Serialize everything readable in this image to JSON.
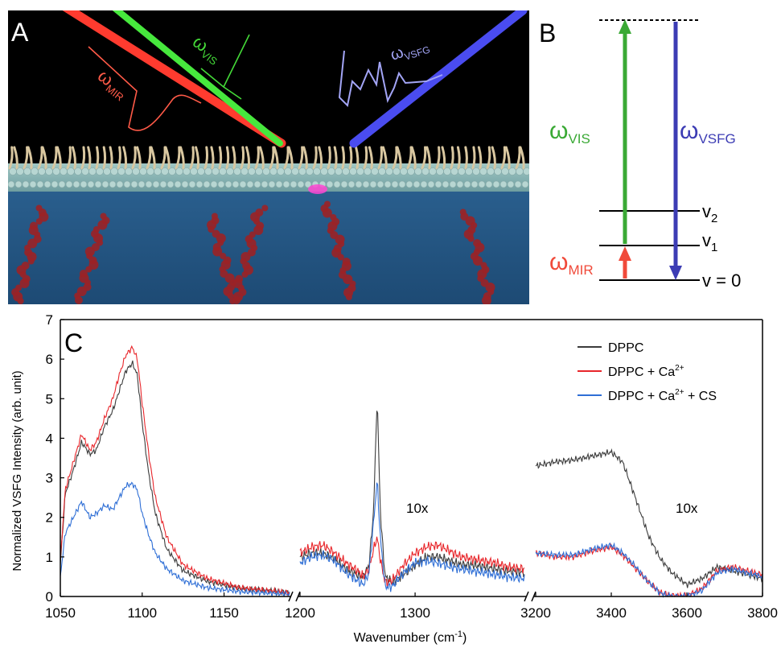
{
  "panel_a": {
    "letter": "A",
    "omega_mir": {
      "sym": "ω",
      "sub": "MIR",
      "color": "#e8604c"
    },
    "omega_vis": {
      "sym": "ω",
      "sub": "VIS",
      "color": "#3fd23a"
    },
    "omega_vsfg": {
      "sym": "ω",
      "sub": "VSFG",
      "color": "#8d8ff0"
    }
  },
  "panel_b": {
    "letter": "B",
    "omega_vis": {
      "sym": "ω",
      "sub": "VIS",
      "color": "#3aa935"
    },
    "omega_vsfg": {
      "sym": "ω",
      "sub": "VSFG",
      "color": "#3c3cb4"
    },
    "omega_mir": {
      "sym": "ω",
      "sub": "MIR",
      "color": "#f04a3a"
    },
    "levels": [
      {
        "v": "v",
        "sub": "2"
      },
      {
        "v": "v",
        "sub": "1"
      },
      {
        "v": "v = 0",
        "sub": ""
      }
    ]
  },
  "chart_data": {
    "type": "line",
    "panel_letter": "C",
    "ylabel": "Normalized VSFG Intensity (arb. unit)",
    "xlabel_main": "Wavenumber (cm",
    "xlabel_sup": "-1",
    "xlabel_end": ")",
    "ylim": [
      0,
      7
    ],
    "yticks": [
      "0",
      "1",
      "2",
      "3",
      "4",
      "5",
      "6",
      "7"
    ],
    "segments": [
      {
        "xlim": [
          1050,
          1190
        ],
        "ticks": [
          1050,
          1100,
          1150
        ],
        "tick_labels": [
          "1050",
          "1100",
          "1150"
        ],
        "annotation": ""
      },
      {
        "xlim": [
          1200,
          1395
        ],
        "ticks": [
          1200,
          1300
        ],
        "tick_labels": [
          "1200",
          "1300"
        ],
        "annotation": "10x"
      },
      {
        "xlim": [
          3200,
          3800
        ],
        "ticks": [
          3200,
          3400,
          3600,
          3800
        ],
        "tick_labels": [
          "3200",
          "3400",
          "3600",
          "3800"
        ],
        "annotation": "10x"
      }
    ],
    "legend": {
      "placement": "top-right",
      "items": [
        {
          "text": "DPPC",
          "sup": "",
          "tail": "",
          "color": "#3c3c3c"
        },
        {
          "text": "DPPC + Ca",
          "sup": "2+",
          "tail": "",
          "color": "#e8262b"
        },
        {
          "text": "DPPC + Ca",
          "sup": "2+",
          "tail": " + CS",
          "color": "#2f6fd6"
        }
      ]
    },
    "series": [
      {
        "name": "DPPC",
        "color": "#3c3c3c",
        "seg1": {
          "x": [
            1050,
            1053,
            1058,
            1063,
            1068,
            1072,
            1077,
            1082,
            1086,
            1090,
            1094,
            1097,
            1100,
            1104,
            1108,
            1115,
            1125,
            1140,
            1160,
            1190
          ],
          "y": [
            0.8,
            2.6,
            3.2,
            3.9,
            3.6,
            3.7,
            4.3,
            4.7,
            5.2,
            5.7,
            5.9,
            5.6,
            4.4,
            3.1,
            2.1,
            1.2,
            0.65,
            0.38,
            0.2,
            0.1
          ]
        },
        "seg2": {
          "x": [
            1200,
            1210,
            1220,
            1230,
            1240,
            1250,
            1255,
            1260,
            1264,
            1267,
            1270,
            1274,
            1280,
            1290,
            1300,
            1310,
            1320,
            1330,
            1340,
            1350,
            1360,
            1370,
            1380,
            1395
          ],
          "y": [
            1.0,
            1.1,
            1.1,
            0.95,
            0.7,
            0.55,
            0.5,
            0.8,
            2.2,
            5.05,
            2.0,
            0.5,
            0.35,
            0.55,
            0.8,
            1.0,
            1.0,
            0.9,
            0.8,
            0.8,
            0.75,
            0.7,
            0.65,
            0.6
          ]
        },
        "seg3": {
          "x": [
            3200,
            3250,
            3300,
            3350,
            3400,
            3430,
            3460,
            3500,
            3530,
            3560,
            3600,
            3640,
            3680,
            3720,
            3760,
            3800
          ],
          "y": [
            3.3,
            3.4,
            3.45,
            3.55,
            3.65,
            3.4,
            2.6,
            1.5,
            0.95,
            0.6,
            0.3,
            0.45,
            0.75,
            0.65,
            0.55,
            0.45
          ]
        }
      },
      {
        "name": "DPPC + Ca2+",
        "color": "#e8262b",
        "seg1": {
          "x": [
            1050,
            1053,
            1058,
            1063,
            1068,
            1072,
            1077,
            1082,
            1086,
            1090,
            1094,
            1097,
            1100,
            1104,
            1108,
            1115,
            1125,
            1140,
            1160,
            1190
          ],
          "y": [
            0.9,
            2.7,
            3.4,
            4.1,
            3.7,
            3.9,
            4.5,
            5.0,
            5.6,
            6.1,
            6.3,
            6.0,
            4.9,
            3.6,
            2.5,
            1.5,
            0.8,
            0.45,
            0.22,
            0.1
          ]
        },
        "seg2": {
          "x": [
            1200,
            1210,
            1220,
            1230,
            1240,
            1250,
            1255,
            1260,
            1264,
            1267,
            1270,
            1274,
            1280,
            1290,
            1300,
            1310,
            1320,
            1330,
            1340,
            1350,
            1360,
            1370,
            1380,
            1395
          ],
          "y": [
            1.1,
            1.25,
            1.3,
            1.1,
            0.85,
            0.65,
            0.5,
            0.7,
            1.2,
            1.5,
            0.9,
            0.35,
            0.4,
            0.8,
            1.1,
            1.25,
            1.3,
            1.15,
            1.0,
            0.95,
            0.9,
            0.85,
            0.75,
            0.7
          ]
        },
        "seg3": {
          "x": [
            3200,
            3250,
            3300,
            3350,
            3400,
            3430,
            3460,
            3500,
            3530,
            3560,
            3600,
            3640,
            3680,
            3720,
            3760,
            3800
          ],
          "y": [
            1.1,
            1.0,
            1.0,
            1.15,
            1.25,
            1.05,
            0.75,
            0.35,
            0.1,
            0.02,
            0.02,
            0.2,
            0.65,
            0.75,
            0.65,
            0.55
          ]
        }
      },
      {
        "name": "DPPC + Ca2+ + CS",
        "color": "#2f6fd6",
        "seg1": {
          "x": [
            1050,
            1053,
            1058,
            1063,
            1068,
            1072,
            1077,
            1082,
            1086,
            1090,
            1094,
            1097,
            1100,
            1104,
            1108,
            1115,
            1125,
            1140,
            1160,
            1190
          ],
          "y": [
            0.5,
            1.6,
            2.0,
            2.4,
            2.0,
            2.1,
            2.3,
            2.2,
            2.5,
            2.8,
            2.85,
            2.7,
            2.1,
            1.55,
            1.1,
            0.7,
            0.4,
            0.22,
            0.12,
            0.06
          ]
        },
        "seg2": {
          "x": [
            1200,
            1210,
            1220,
            1230,
            1240,
            1250,
            1255,
            1260,
            1264,
            1267,
            1270,
            1274,
            1280,
            1290,
            1300,
            1310,
            1320,
            1330,
            1340,
            1350,
            1360,
            1370,
            1380,
            1395
          ],
          "y": [
            0.85,
            1.0,
            1.05,
            0.9,
            0.6,
            0.4,
            0.3,
            0.6,
            1.9,
            2.95,
            1.4,
            0.25,
            0.25,
            0.6,
            0.85,
            0.9,
            0.85,
            0.75,
            0.7,
            0.65,
            0.6,
            0.55,
            0.5,
            0.45
          ]
        },
        "seg3": {
          "x": [
            3200,
            3250,
            3300,
            3350,
            3400,
            3430,
            3460,
            3500,
            3530,
            3560,
            3600,
            3640,
            3680,
            3720,
            3760,
            3800
          ],
          "y": [
            1.1,
            1.05,
            1.05,
            1.2,
            1.3,
            1.1,
            0.8,
            0.35,
            0.08,
            0.0,
            0.0,
            0.15,
            0.6,
            0.7,
            0.6,
            0.5
          ]
        }
      }
    ]
  }
}
